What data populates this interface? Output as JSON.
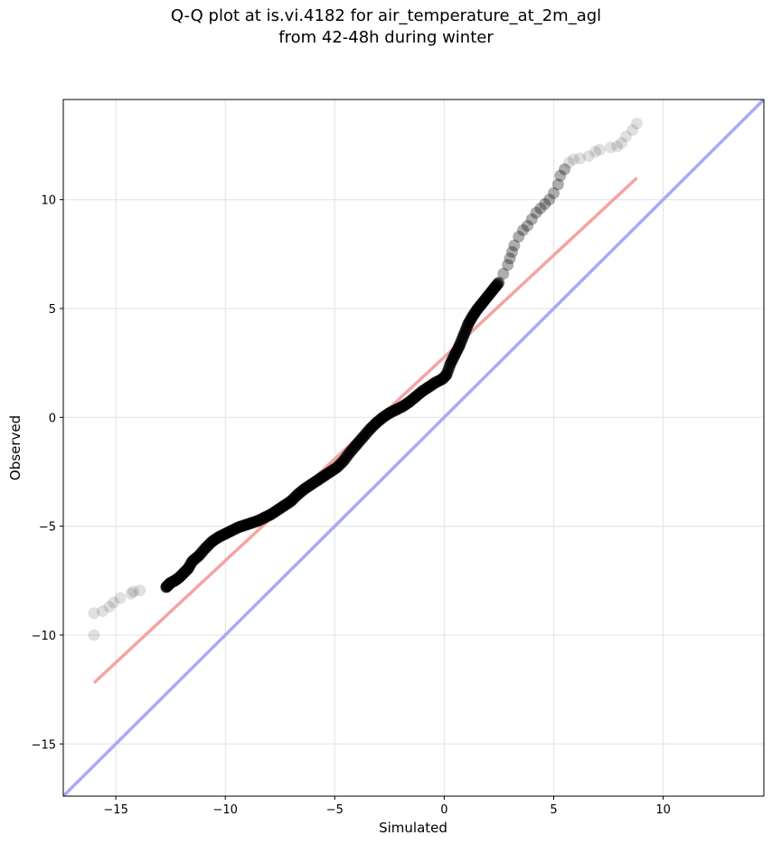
{
  "chart_data": {
    "type": "scatter",
    "title_line1": "Q-Q plot at is.vi.4182 for air_temperature_at_2m_agl",
    "title_line2": "from 42-48h during winter",
    "xlabel": "Simulated",
    "ylabel": "Observed",
    "xlim": [
      -17.4,
      14.6
    ],
    "ylim": [
      -17.4,
      14.6
    ],
    "x_ticks": [
      -15,
      -10,
      -5,
      0,
      5,
      10
    ],
    "x_tick_labels": [
      "−15",
      "−10",
      "−5",
      "0",
      "5",
      "10"
    ],
    "y_ticks": [
      -15,
      -10,
      -5,
      0,
      5,
      10
    ],
    "y_tick_labels": [
      "−15",
      "−10",
      "−5",
      "0",
      "5",
      "10"
    ],
    "grid": true,
    "quantile_points": {
      "x": [
        -16.0,
        -16.0,
        -15.6,
        -15.3,
        -15.1,
        -14.8,
        -14.3,
        -14.2,
        -13.9,
        -12.7,
        -12.6,
        -12.5,
        -12.3,
        -12.1,
        -11.9,
        -11.7,
        -11.5,
        -11.2,
        -10.9,
        -10.6,
        -10.3,
        -10.0,
        -9.7,
        -9.4,
        -9.1,
        -8.8,
        -8.5,
        -8.2,
        -7.9,
        -7.6,
        -7.3,
        -7.0,
        -6.7,
        -6.4,
        -6.1,
        -5.8,
        -5.5,
        -5.2,
        -4.9,
        -4.6,
        -4.3,
        -4.0,
        -3.7,
        -3.4,
        -3.1,
        -2.8,
        -2.5,
        -2.2,
        -1.9,
        -1.6,
        -1.3,
        -1.0,
        -0.7,
        -0.4,
        -0.1,
        0.1,
        0.3,
        0.5,
        0.7,
        0.9,
        1.1,
        1.3,
        1.5,
        1.7,
        1.9,
        2.1,
        2.3,
        2.5,
        2.7,
        2.9,
        3.0,
        3.1,
        3.2,
        3.4,
        3.6,
        3.8,
        4.0,
        4.2,
        4.4,
        4.6,
        4.8,
        5.0,
        5.2,
        5.3,
        5.5,
        5.7,
        5.9,
        6.2,
        6.6,
        6.9,
        7.1,
        7.6,
        7.9,
        8.1,
        8.3,
        8.6,
        8.8
      ],
      "y": [
        -10.0,
        -9.0,
        -8.9,
        -8.7,
        -8.5,
        -8.3,
        -8.1,
        -8.0,
        -7.95,
        -7.8,
        -7.7,
        -7.6,
        -7.5,
        -7.35,
        -7.15,
        -6.95,
        -6.6,
        -6.35,
        -6.0,
        -5.7,
        -5.5,
        -5.35,
        -5.2,
        -5.05,
        -4.95,
        -4.85,
        -4.75,
        -4.6,
        -4.45,
        -4.25,
        -4.05,
        -3.85,
        -3.55,
        -3.3,
        -3.1,
        -2.9,
        -2.7,
        -2.5,
        -2.3,
        -2.0,
        -1.6,
        -1.25,
        -0.9,
        -0.55,
        -0.25,
        0.0,
        0.2,
        0.35,
        0.5,
        0.7,
        0.95,
        1.2,
        1.4,
        1.6,
        1.75,
        1.95,
        2.5,
        2.9,
        3.3,
        3.8,
        4.3,
        4.65,
        4.95,
        5.2,
        5.45,
        5.7,
        5.95,
        6.2,
        6.6,
        7.0,
        7.3,
        7.6,
        7.9,
        8.3,
        8.6,
        8.8,
        9.1,
        9.4,
        9.6,
        9.8,
        10.0,
        10.3,
        10.7,
        11.1,
        11.4,
        11.7,
        11.85,
        11.9,
        12.0,
        12.2,
        12.3,
        12.4,
        12.45,
        12.6,
        12.9,
        13.2,
        13.5
      ]
    },
    "fit_line": {
      "x": [
        -16.0,
        8.8
      ],
      "y": [
        -12.2,
        11.0
      ],
      "color": "#f4a3a3"
    },
    "identity_line": {
      "x": [
        -17.4,
        14.6
      ],
      "y": [
        -17.4,
        14.6
      ],
      "color": "#a9a9f7"
    },
    "point_color": "#000000"
  }
}
